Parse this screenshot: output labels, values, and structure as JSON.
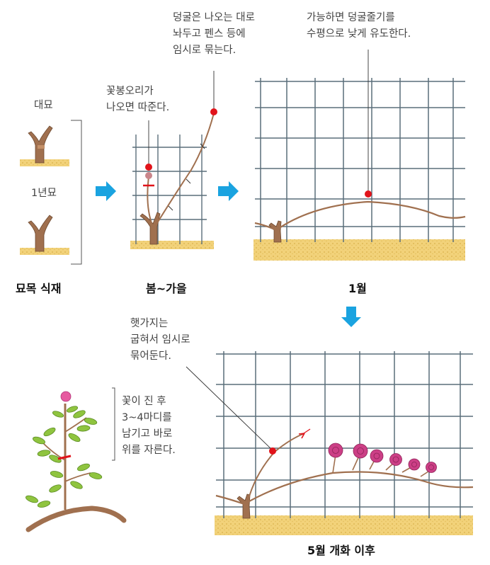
{
  "labels": {
    "nursery_1year": "대묘",
    "nursery_grafted": "1년묘",
    "note_flowerbud": "꽃봉오리가\n나오면 따준다.",
    "note_vine_tie": "덩굴은 나오는 대로\n놔두고 펜스 등에\n임시로 묶는다.",
    "note_horizontal": "가능하면 덩굴줄기를\n수평으로 낮게 유도한다.",
    "note_new_shoot": "햇가지는\n굽혀서 임시로\n묶어둔다.",
    "note_prune": "꽃이 진 후\n3~4마디를\n남기고 바로\n위를 자른다."
  },
  "captions": {
    "step1": "묘목 식재",
    "step2": "봄~가을",
    "step3": "1월",
    "step4": "5월 개화 이후"
  },
  "colors": {
    "grid": "#5a6e7a",
    "arrow": "#1aa3e0",
    "soil": "#f2d27a",
    "stem": "#a0704f",
    "dot": "#e1131a",
    "rose": "#cc3f86",
    "leaf": "#8fc43f"
  }
}
